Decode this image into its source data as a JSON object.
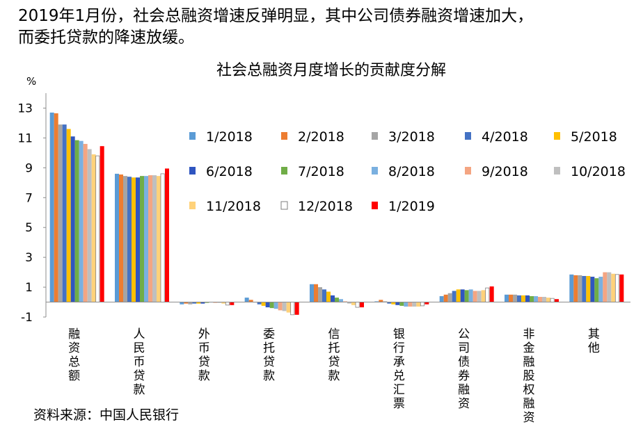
{
  "headline": {
    "line1": "2019年1月份，社会总融资增速反弹明显，其中公司债券融资增速加大，",
    "line2": "而委托贷款的降速放缓。"
  },
  "source": "资料来源：中国人民银行",
  "colors": [
    "#5b9bd5",
    "#ed7d31",
    "#a5a5a5",
    "#4472c4",
    "#ffc000",
    "#2f55c0",
    "#70ad47",
    "#7ab0e0",
    "#f4a582",
    "#bfbfbf",
    "#ffd27a",
    "#ffffff",
    "#ff0000"
  ],
  "chart_data": {
    "type": "bar",
    "title": "社会总融资月度增长的贡献度分解",
    "ylabel": "%",
    "ylim": [
      -1,
      14
    ],
    "yticks": [
      -1,
      1,
      3,
      5,
      7,
      9,
      11,
      13
    ],
    "grid": false,
    "legend_position": "center-right",
    "categories": [
      "融资总额",
      "人民币贷款",
      "外币贷款",
      "委托贷款",
      "信托贷款",
      "银行承兑汇票",
      "公司债券融资",
      "非金融股权融资",
      "其他"
    ],
    "series": [
      {
        "name": "1/2018",
        "values": [
          12.7,
          8.6,
          -0.15,
          0.3,
          1.2,
          0.05,
          0.4,
          0.5,
          1.85
        ]
      },
      {
        "name": "2/2018",
        "values": [
          12.65,
          8.55,
          -0.1,
          0.15,
          1.2,
          0.15,
          0.5,
          0.5,
          1.8
        ]
      },
      {
        "name": "3/2018",
        "values": [
          11.9,
          8.45,
          -0.15,
          0.0,
          1.0,
          0.05,
          0.6,
          0.5,
          1.8
        ]
      },
      {
        "name": "4/2018",
        "values": [
          11.9,
          8.4,
          -0.1,
          -0.15,
          0.85,
          -0.1,
          0.75,
          0.45,
          1.75
        ]
      },
      {
        "name": "5/2018",
        "values": [
          11.6,
          8.35,
          -0.1,
          -0.25,
          0.7,
          -0.15,
          0.85,
          0.45,
          1.75
        ]
      },
      {
        "name": "6/2018",
        "values": [
          11.1,
          8.35,
          -0.1,
          -0.35,
          0.45,
          -0.2,
          0.85,
          0.45,
          1.7
        ]
      },
      {
        "name": "7/2018",
        "values": [
          10.85,
          8.45,
          -0.05,
          -0.4,
          0.3,
          -0.25,
          0.8,
          0.4,
          1.6
        ]
      },
      {
        "name": "8/2018",
        "values": [
          10.8,
          8.45,
          0.0,
          -0.45,
          0.2,
          -0.3,
          0.85,
          0.4,
          1.7
        ]
      },
      {
        "name": "9/2018",
        "values": [
          10.6,
          8.5,
          -0.05,
          -0.55,
          0.05,
          -0.3,
          0.75,
          0.35,
          2.0
        ]
      },
      {
        "name": "10/2018",
        "values": [
          10.25,
          8.5,
          -0.05,
          -0.6,
          -0.1,
          -0.3,
          0.75,
          0.35,
          2.0
        ]
      },
      {
        "name": "11/2018",
        "values": [
          9.9,
          8.45,
          -0.1,
          -0.7,
          -0.2,
          -0.3,
          0.8,
          0.3,
          1.9
        ]
      },
      {
        "name": "12/2018",
        "values": [
          9.8,
          8.6,
          -0.2,
          -0.85,
          -0.35,
          -0.25,
          0.95,
          0.25,
          1.85
        ]
      },
      {
        "name": "1/2019",
        "values": [
          10.45,
          8.95,
          -0.2,
          -0.85,
          -0.35,
          -0.15,
          1.05,
          0.2,
          1.85
        ]
      }
    ]
  }
}
